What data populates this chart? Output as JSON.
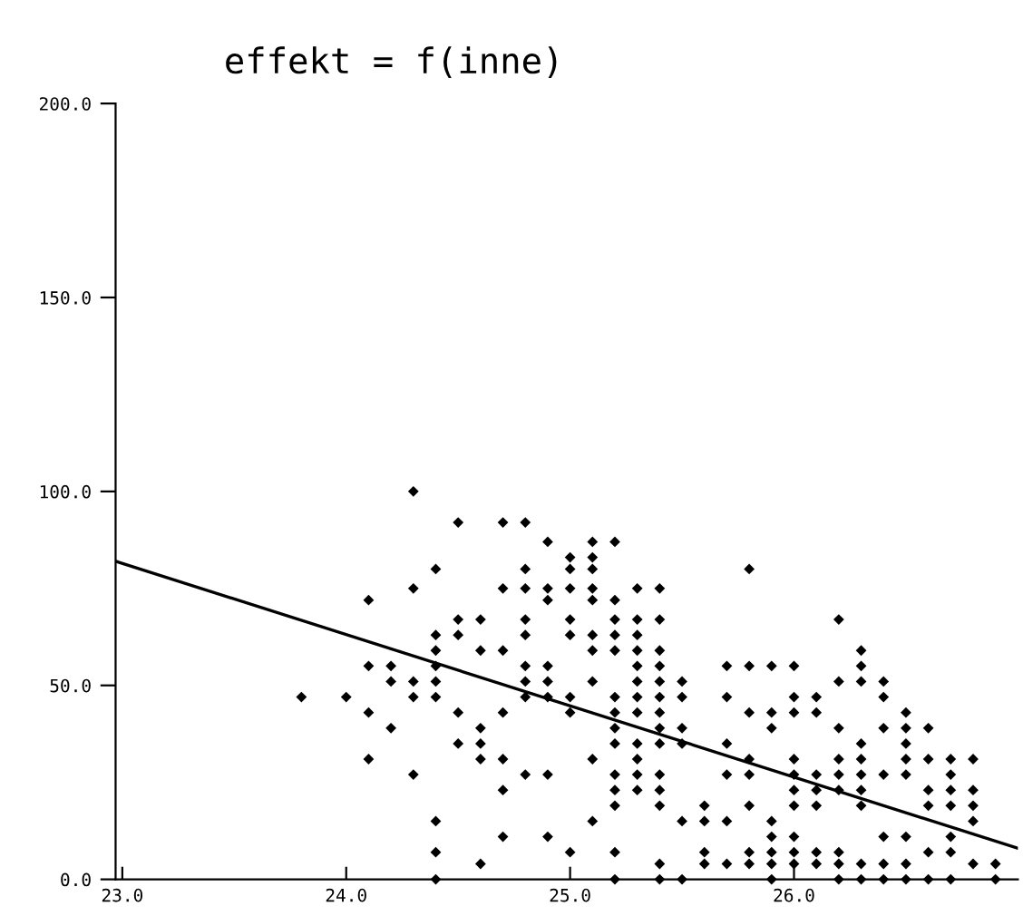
{
  "chart_data": {
    "type": "scatter",
    "title": "effekt = f(inne)",
    "xlim": [
      22.97,
      27.0
    ],
    "ylim": [
      0,
      200
    ],
    "xticks": [
      {
        "value": 23,
        "label": "23.0"
      },
      {
        "value": 24,
        "label": "24.0"
      },
      {
        "value": 25,
        "label": "25.0"
      },
      {
        "value": 26,
        "label": "26.0"
      }
    ],
    "yticks": [
      {
        "value": 0,
        "label": "0.0"
      },
      {
        "value": 50,
        "label": "50.0"
      },
      {
        "value": 100,
        "label": "100.0"
      },
      {
        "value": 150,
        "label": "150.0"
      },
      {
        "value": 200,
        "label": "200.0"
      }
    ],
    "grid": false,
    "legend": false,
    "series": [
      {
        "marker": "diamond",
        "color": "#000000",
        "x": [
          23.8,
          24.0,
          24.1,
          24.1,
          24.1,
          24.1,
          24.2,
          24.2,
          24.2,
          24.3,
          24.3,
          24.3,
          24.3,
          24.3,
          24.4,
          24.4,
          24.4,
          24.4,
          24.4,
          24.4,
          24.4,
          24.4,
          24.4,
          24.5,
          24.5,
          24.5,
          24.5,
          24.5,
          24.6,
          24.6,
          24.6,
          24.6,
          24.6,
          24.6,
          24.7,
          24.7,
          24.7,
          24.7,
          24.7,
          24.7,
          24.7,
          24.8,
          24.8,
          24.8,
          24.8,
          24.8,
          24.8,
          24.8,
          24.8,
          24.8,
          24.9,
          24.9,
          24.9,
          24.9,
          24.9,
          24.9,
          24.9,
          24.9,
          25.0,
          25.0,
          25.0,
          25.0,
          25.0,
          25.0,
          25.0,
          25.0,
          25.1,
          25.1,
          25.1,
          25.1,
          25.1,
          25.1,
          25.1,
          25.1,
          25.1,
          25.1,
          25.2,
          25.2,
          25.2,
          25.2,
          25.2,
          25.2,
          25.2,
          25.2,
          25.2,
          25.2,
          25.2,
          25.2,
          25.2,
          25.2,
          25.3,
          25.3,
          25.3,
          25.3,
          25.3,
          25.3,
          25.3,
          25.3,
          25.3,
          25.3,
          25.3,
          25.3,
          25.4,
          25.4,
          25.4,
          25.4,
          25.4,
          25.4,
          25.4,
          25.4,
          25.4,
          25.4,
          25.4,
          25.4,
          25.4,
          25.4,
          25.5,
          25.5,
          25.5,
          25.5,
          25.5,
          25.5,
          25.6,
          25.6,
          25.6,
          25.6,
          25.7,
          25.7,
          25.7,
          25.7,
          25.7,
          25.7,
          25.8,
          25.8,
          25.8,
          25.8,
          25.8,
          25.8,
          25.8,
          25.8,
          25.9,
          25.9,
          25.9,
          25.9,
          25.9,
          25.9,
          25.9,
          25.9,
          26.0,
          26.0,
          26.0,
          26.0,
          26.0,
          26.0,
          26.0,
          26.0,
          26.0,
          26.0,
          26.1,
          26.1,
          26.1,
          26.1,
          26.1,
          26.1,
          26.1,
          26.2,
          26.2,
          26.2,
          26.2,
          26.2,
          26.2,
          26.2,
          26.2,
          26.2,
          26.3,
          26.3,
          26.3,
          26.3,
          26.3,
          26.3,
          26.3,
          26.3,
          26.3,
          26.3,
          26.4,
          26.4,
          26.4,
          26.4,
          26.4,
          26.4,
          26.4,
          26.5,
          26.5,
          26.5,
          26.5,
          26.5,
          26.5,
          26.5,
          26.5,
          26.6,
          26.6,
          26.6,
          26.6,
          26.6,
          26.6,
          26.7,
          26.7,
          26.7,
          26.7,
          26.7,
          26.7,
          26.7,
          26.8,
          26.8,
          26.8,
          26.8,
          26.8,
          26.9,
          26.9
        ],
        "values": [
          47,
          47,
          72,
          55,
          43,
          31,
          55,
          51,
          39,
          100,
          75,
          51,
          47,
          27,
          80,
          63,
          59,
          55,
          51,
          47,
          15,
          7,
          0,
          92,
          67,
          63,
          43,
          35,
          67,
          59,
          39,
          35,
          31,
          4,
          92,
          75,
          59,
          43,
          31,
          23,
          11,
          92,
          80,
          75,
          67,
          63,
          55,
          51,
          47,
          27,
          87,
          75,
          72,
          55,
          51,
          47,
          27,
          11,
          83,
          80,
          75,
          67,
          63,
          47,
          43,
          7,
          87,
          83,
          80,
          75,
          72,
          63,
          59,
          51,
          31,
          15,
          87,
          72,
          67,
          63,
          59,
          47,
          43,
          39,
          35,
          27,
          23,
          19,
          7,
          0,
          75,
          67,
          63,
          59,
          55,
          51,
          47,
          43,
          35,
          31,
          27,
          23,
          75,
          67,
          59,
          55,
          51,
          47,
          43,
          39,
          35,
          27,
          23,
          19,
          4,
          0,
          51,
          47,
          39,
          35,
          15,
          0,
          19,
          15,
          7,
          4,
          55,
          47,
          35,
          27,
          15,
          4,
          80,
          55,
          43,
          31,
          27,
          19,
          7,
          4,
          55,
          43,
          39,
          15,
          11,
          7,
          4,
          0,
          55,
          47,
          43,
          31,
          27,
          23,
          19,
          11,
          7,
          4,
          47,
          43,
          27,
          23,
          19,
          7,
          4,
          67,
          51,
          39,
          31,
          27,
          23,
          7,
          4,
          0,
          59,
          55,
          51,
          35,
          31,
          27,
          23,
          19,
          4,
          0,
          51,
          47,
          39,
          27,
          11,
          4,
          0,
          43,
          39,
          35,
          31,
          27,
          11,
          4,
          0,
          39,
          31,
          23,
          19,
          7,
          0,
          31,
          27,
          23,
          19,
          11,
          7,
          0,
          31,
          23,
          19,
          15,
          4,
          4,
          0
        ]
      },
      {
        "type": "line",
        "color": "#000000",
        "x": [
          22.97,
          27.0
        ],
        "values": [
          82,
          8
        ]
      }
    ]
  }
}
